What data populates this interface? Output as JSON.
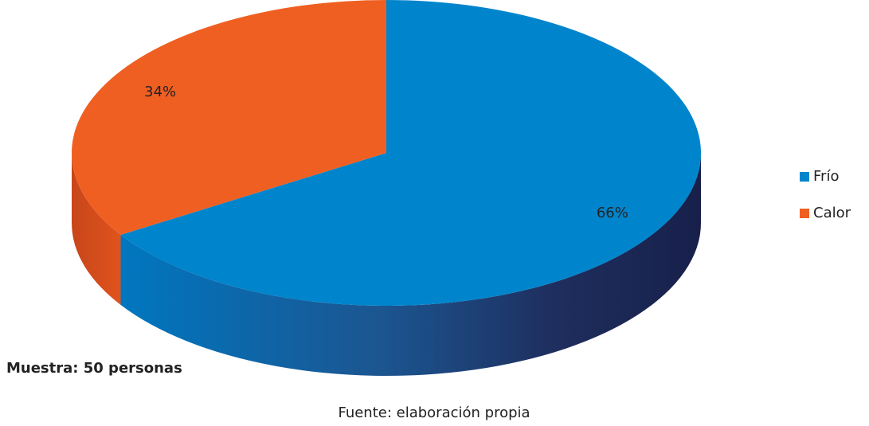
{
  "chart_data": {
    "type": "pie3d",
    "categories": [
      "Frío",
      "Calor"
    ],
    "values": [
      66,
      34
    ],
    "value_labels": [
      "66%",
      "34%"
    ],
    "colors": [
      "#0085cc",
      "#f05f22"
    ],
    "legend": "right",
    "annotations": [
      "Muestra: 50 personas",
      "Fuente: elaboración propia"
    ]
  }
}
